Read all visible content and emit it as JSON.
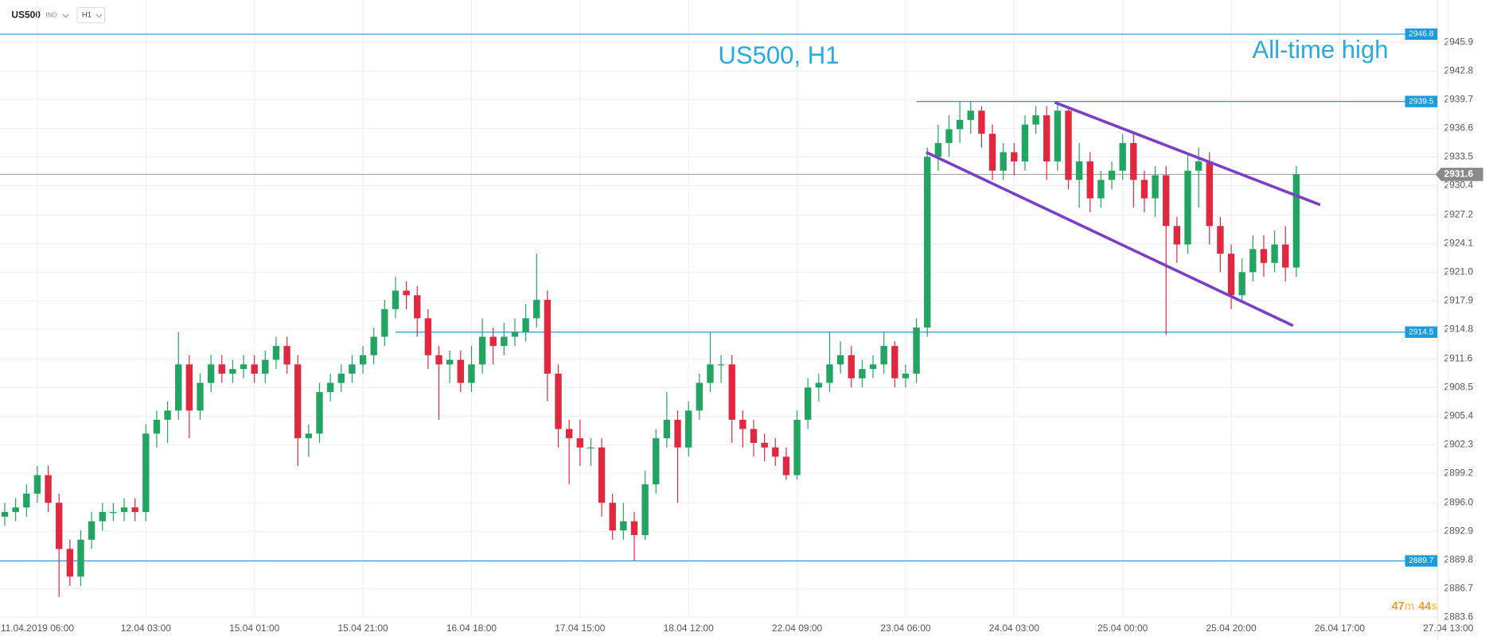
{
  "header": {
    "symbol": "US500",
    "market": "IND",
    "timeframe": "H1"
  },
  "chart_data": {
    "type": "candlestick",
    "title": "US500, H1",
    "annotation": "All-time high",
    "timer": {
      "minutes": "47",
      "minutes_unit": "m",
      "seconds": "44",
      "seconds_unit": "s"
    },
    "up_color": "#22a463",
    "down_color": "#e0283f",
    "grid": true,
    "xlim": [
      -0.44,
      132
    ],
    "ylim": [
      2883.5,
      2950.5
    ],
    "xticks": [
      {
        "value": 3,
        "label": "11.04.2019   06:00"
      },
      {
        "value": 13,
        "label": "12.04  03:00"
      },
      {
        "value": 23,
        "label": "15.04  01:00"
      },
      {
        "value": 33,
        "label": "15.04  21:00"
      },
      {
        "value": 43,
        "label": "16.04  18:00"
      },
      {
        "value": 53,
        "label": "17.04  15:00"
      },
      {
        "value": 63,
        "label": "18.04  12:00"
      },
      {
        "value": 73,
        "label": "22.04  09:00"
      },
      {
        "value": 83,
        "label": "23.04  06:00"
      },
      {
        "value": 93,
        "label": "24.04  03:00"
      },
      {
        "value": 103,
        "label": "25.04  00:00"
      },
      {
        "value": 113,
        "label": "25.04  20:00"
      },
      {
        "value": 123,
        "label": "26.04  17:00"
      },
      {
        "value": 133,
        "label": "27.04  13:00"
      }
    ],
    "yticks": [
      2945.9,
      2942.8,
      2939.7,
      2936.6,
      2933.5,
      2930.4,
      2927.2,
      2924.1,
      {
        "value": 2921,
        "label": "2921.0"
      },
      2917.9,
      2914.8,
      2911.6,
      2908.5,
      2905.4,
      2902.3,
      2899.2,
      {
        "value": 2896,
        "label": "2896.0"
      },
      2892.9,
      2889.8,
      2886.7,
      2883.6
    ],
    "open": [
      2894.5,
      2895,
      2895.5,
      2897,
      2899,
      2896,
      2891,
      2888,
      2892,
      2894,
      2895,
      2895,
      2895.5,
      2895,
      2903.5,
      2905,
      2906,
      2911,
      2906,
      2909,
      2911,
      2910,
      2910.5,
      2911,
      2910,
      2911.5,
      2913,
      2911,
      2903,
      2903.5,
      2908,
      2909,
      2910,
      2911,
      2912,
      2914,
      2917,
      2919,
      2918.5,
      2916,
      2912,
      2911,
      2911.5,
      2909,
      2911,
      2914,
      2913,
      2914,
      2914.5,
      2916,
      2918,
      2910,
      2904,
      2903,
      2902,
      2902,
      2896,
      2893,
      2894,
      2892.5,
      2898,
      2903,
      2905,
      2902,
      2906,
      2909,
      2911,
      2911,
      2905,
      2904,
      2902.5,
      2902,
      2901,
      2899,
      2905,
      2908.5,
      2909,
      2911,
      2912,
      2909.5,
      2910.5,
      2911,
      2913,
      2909.5,
      2910,
      2915,
      2933.5,
      2935,
      2936.5,
      2937.5,
      2938.5,
      2936,
      2932,
      2934,
      2933,
      2937,
      2938,
      2933,
      2938.5,
      2931,
      2933,
      2929,
      2931,
      2932,
      2935,
      2931,
      2929,
      2931.5,
      2926,
      2924,
      2932,
      2933,
      2926,
      2923,
      2918.5,
      2921,
      2923.5,
      2922,
      2924,
      2921.5
    ],
    "high": [
      2896,
      2896.5,
      2898,
      2900,
      2900,
      2897,
      2892,
      2893,
      2895,
      2896,
      2896,
      2896.5,
      2896.5,
      2904.5,
      2906,
      2907,
      2914.5,
      2912,
      2910,
      2912,
      2912,
      2911.5,
      2912,
      2912,
      2912.5,
      2914,
      2914,
      2912,
      2904.5,
      2909,
      2910,
      2911,
      2912,
      2913,
      2915,
      2918,
      2920.5,
      2920,
      2919.5,
      2917,
      2913,
      2912.5,
      2912.5,
      2913,
      2916,
      2915,
      2915.5,
      2916,
      2917.5,
      2923,
      2919,
      2911,
      2905,
      2905,
      2903,
      2903,
      2897,
      2896,
      2895,
      2899.5,
      2904,
      2908,
      2906,
      2907,
      2910,
      2914.5,
      2912,
      2912,
      2906,
      2905,
      2903.5,
      2903,
      2902,
      2906,
      2909.5,
      2910,
      2914.5,
      2913.5,
      2913,
      2911.5,
      2912,
      2914.5,
      2913.5,
      2911,
      2916,
      2934.5,
      2937,
      2938,
      2939.5,
      2939.5,
      2939,
      2937,
      2935,
      2935,
      2938,
      2939,
      2939,
      2939.5,
      2939,
      2935,
      2934,
      2932,
      2933,
      2936,
      2936,
      2932,
      2932.5,
      2932.5,
      2927,
      2934,
      2934.5,
      2934,
      2927,
      2924,
      2922.5,
      2925,
      2925,
      2925.5,
      2926,
      2932.5
    ],
    "low": [
      2893.5,
      2894,
      2894.5,
      2896,
      2895,
      2885.8,
      2887,
      2887,
      2891,
      2893,
      2894,
      2894,
      2894,
      2894,
      2902,
      2902.5,
      2905,
      2903,
      2905,
      2908,
      2909,
      2909,
      2909.5,
      2909,
      2909,
      2910.5,
      2910,
      2900,
      2901,
      2902.5,
      2907,
      2908,
      2909,
      2910,
      2911,
      2913,
      2916,
      2917,
      2914,
      2910.5,
      2905,
      2909,
      2908,
      2908,
      2910,
      2911,
      2912,
      2913,
      2913.5,
      2915,
      2907,
      2902,
      2898,
      2900,
      2900,
      2894.5,
      2892,
      2892,
      2889.7,
      2892,
      2897,
      2902,
      2896,
      2901,
      2905,
      2908,
      2909,
      2902.5,
      2902,
      2901,
      2900.5,
      2900,
      2898.5,
      2898.5,
      2904,
      2907,
      2908,
      2910,
      2908.5,
      2908.5,
      2909.5,
      2910,
      2908.5,
      2908.5,
      2909,
      2914,
      2932,
      2933.5,
      2935,
      2936,
      2934.5,
      2931,
      2931,
      2931.5,
      2932,
      2936,
      2931,
      2932,
      2930,
      2928,
      2927.5,
      2928,
      2930,
      2931,
      2928,
      2927.5,
      2927,
      2914.2,
      2922,
      2923,
      2928,
      2924,
      2921,
      2917,
      2918,
      2920,
      2920.5,
      2921,
      2920,
      2920.5
    ],
    "close": [
      2895,
      2895.5,
      2897,
      2899,
      2896,
      2891,
      2888,
      2892,
      2894,
      2895,
      2895,
      2895.5,
      2895,
      2903.5,
      2905,
      2906,
      2911,
      2906,
      2909,
      2911,
      2910,
      2910.5,
      2911,
      2910,
      2911.5,
      2913,
      2911,
      2903,
      2903.5,
      2908,
      2909,
      2910,
      2911,
      2912,
      2914,
      2917,
      2919,
      2918.5,
      2916,
      2912,
      2911,
      2911.5,
      2909,
      2911,
      2914,
      2913,
      2914,
      2914.5,
      2916,
      2918,
      2910,
      2904,
      2903,
      2902,
      2902,
      2896,
      2893,
      2894,
      2892.5,
      2898,
      2903,
      2905,
      2902,
      2906,
      2909,
      2911,
      2911,
      2905,
      2904,
      2902.5,
      2902,
      2901,
      2899,
      2905,
      2908.5,
      2909,
      2911,
      2912,
      2909.5,
      2910.5,
      2911,
      2913,
      2909.5,
      2910,
      2915,
      2933.5,
      2935,
      2936.5,
      2937.5,
      2938.5,
      2936,
      2932,
      2934,
      2933,
      2937,
      2938,
      2933,
      2938.5,
      2931,
      2933,
      2929,
      2931,
      2932,
      2935,
      2931,
      2929,
      2931.5,
      2926,
      2924,
      2932,
      2933,
      2926,
      2923,
      2918.5,
      2921,
      2923.5,
      2922,
      2924,
      2921.5,
      2931.6
    ],
    "levels": [
      {
        "value": 2946.8,
        "color": "#1a9be0"
      },
      {
        "value": 2939.5,
        "start": 84,
        "color": "#1a9be0"
      },
      {
        "value": 2914.5,
        "start": 36,
        "color": "#1a9be0"
      },
      {
        "value": 2889.7,
        "color": "#1a9be0"
      }
    ],
    "current_price": {
      "value": 2931.6,
      "color": "#8a8a8a"
    },
    "trendlines": [
      {
        "x": [
          96.75,
          121.2
        ],
        "y": [
          2939.4,
          2928.3
        ],
        "color": "#7a3fc6"
      },
      {
        "x": [
          84.9,
          118.7
        ],
        "y": [
          2934,
          2915.2
        ],
        "color": "#7a3fc6"
      }
    ]
  }
}
